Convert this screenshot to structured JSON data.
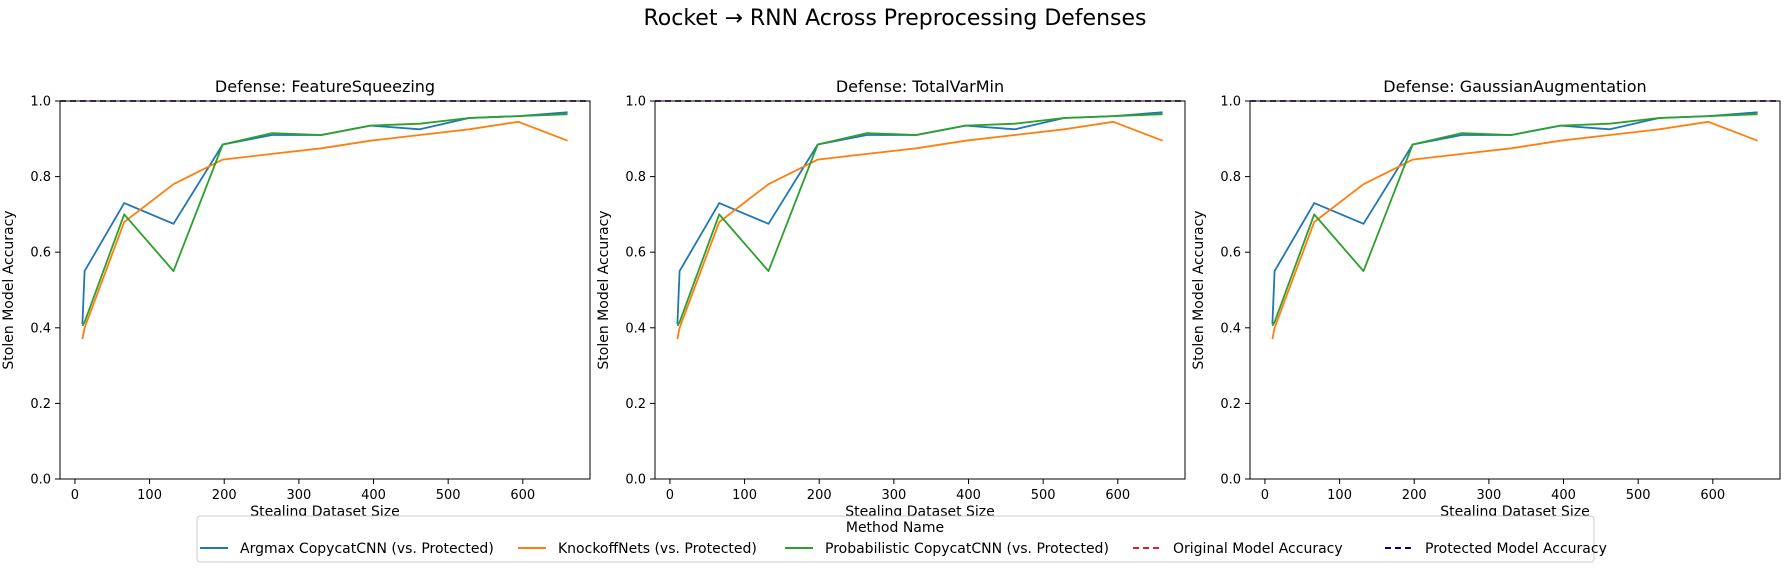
{
  "figure": {
    "title": "Rocket → RNN Across Preprocessing Defenses",
    "legend_title": "Method Name"
  },
  "colors": {
    "argmax": "#1f77b4",
    "knockoff": "#ff7f0e",
    "probabilistic": "#2ca02c",
    "original": "#d62728",
    "protected": "#00008b"
  },
  "chart_data": [
    {
      "type": "line",
      "title": "Defense: FeatureSqueezing",
      "xlabel": "Stealing Dataset Size",
      "ylabel": "Stolen Model Accuracy",
      "xlim": [
        -20,
        690
      ],
      "ylim": [
        0,
        1.0
      ],
      "xticks": [
        0,
        100,
        200,
        300,
        400,
        500,
        600
      ],
      "yticks": [
        0.0,
        0.2,
        0.4,
        0.6,
        0.8,
        1.0
      ],
      "legend_position": "lower-center",
      "series": [
        {
          "name": "Argmax CopycatCNN (vs. Protected)",
          "color": "argmax",
          "x": [
            10,
            13,
            66,
            132,
            198,
            264,
            330,
            396,
            462,
            528,
            594,
            660
          ],
          "y": [
            0.41,
            0.55,
            0.73,
            0.675,
            0.885,
            0.91,
            0.91,
            0.935,
            0.925,
            0.955,
            0.96,
            0.97
          ]
        },
        {
          "name": "KnockoffNets (vs. Protected)",
          "color": "knockoff",
          "x": [
            10,
            13,
            66,
            132,
            198,
            264,
            330,
            396,
            462,
            528,
            594,
            660
          ],
          "y": [
            0.37,
            0.4,
            0.68,
            0.78,
            0.845,
            0.86,
            0.875,
            0.895,
            0.91,
            0.925,
            0.945,
            0.895
          ]
        },
        {
          "name": "Probabilistic CopycatCNN (vs. Protected)",
          "color": "probabilistic",
          "x": [
            10,
            13,
            66,
            132,
            198,
            264,
            330,
            396,
            462,
            528,
            594,
            660
          ],
          "y": [
            0.405,
            0.415,
            0.7,
            0.55,
            0.885,
            0.915,
            0.91,
            0.935,
            0.94,
            0.955,
            0.96,
            0.965
          ]
        },
        {
          "name": "Original Model Accuracy",
          "color": "original",
          "dashed": true,
          "hline": 1.0
        },
        {
          "name": "Protected Model Accuracy",
          "color": "protected",
          "dashed": true,
          "hline": 1.0
        }
      ]
    },
    {
      "type": "line",
      "title": "Defense: TotalVarMin",
      "xlabel": "Stealing Dataset Size",
      "ylabel": "Stolen Model Accuracy",
      "xlim": [
        -20,
        690
      ],
      "ylim": [
        0,
        1.0
      ],
      "xticks": [
        0,
        100,
        200,
        300,
        400,
        500,
        600
      ],
      "yticks": [
        0.0,
        0.2,
        0.4,
        0.6,
        0.8,
        1.0
      ],
      "legend_position": "lower-center",
      "series": [
        {
          "name": "Argmax CopycatCNN (vs. Protected)",
          "color": "argmax",
          "x": [
            10,
            13,
            66,
            132,
            198,
            264,
            330,
            396,
            462,
            528,
            594,
            660
          ],
          "y": [
            0.41,
            0.55,
            0.73,
            0.675,
            0.885,
            0.91,
            0.91,
            0.935,
            0.925,
            0.955,
            0.96,
            0.97
          ]
        },
        {
          "name": "KnockoffNets (vs. Protected)",
          "color": "knockoff",
          "x": [
            10,
            13,
            66,
            132,
            198,
            264,
            330,
            396,
            462,
            528,
            594,
            660
          ],
          "y": [
            0.37,
            0.4,
            0.68,
            0.78,
            0.845,
            0.86,
            0.875,
            0.895,
            0.91,
            0.925,
            0.945,
            0.895
          ]
        },
        {
          "name": "Probabilistic CopycatCNN (vs. Protected)",
          "color": "probabilistic",
          "x": [
            10,
            13,
            66,
            132,
            198,
            264,
            330,
            396,
            462,
            528,
            594,
            660
          ],
          "y": [
            0.405,
            0.415,
            0.7,
            0.55,
            0.885,
            0.915,
            0.91,
            0.935,
            0.94,
            0.955,
            0.96,
            0.965
          ]
        },
        {
          "name": "Original Model Accuracy",
          "color": "original",
          "dashed": true,
          "hline": 1.0
        },
        {
          "name": "Protected Model Accuracy",
          "color": "protected",
          "dashed": true,
          "hline": 1.0
        }
      ]
    },
    {
      "type": "line",
      "title": "Defense: GaussianAugmentation",
      "xlabel": "Stealing Dataset Size",
      "ylabel": "Stolen Model Accuracy",
      "xlim": [
        -20,
        690
      ],
      "ylim": [
        0,
        1.0
      ],
      "xticks": [
        0,
        100,
        200,
        300,
        400,
        500,
        600
      ],
      "yticks": [
        0.0,
        0.2,
        0.4,
        0.6,
        0.8,
        1.0
      ],
      "legend_position": "lower-center",
      "series": [
        {
          "name": "Argmax CopycatCNN (vs. Protected)",
          "color": "argmax",
          "x": [
            10,
            13,
            66,
            132,
            198,
            264,
            330,
            396,
            462,
            528,
            594,
            660
          ],
          "y": [
            0.41,
            0.55,
            0.73,
            0.675,
            0.885,
            0.91,
            0.91,
            0.935,
            0.925,
            0.955,
            0.96,
            0.97
          ]
        },
        {
          "name": "KnockoffNets (vs. Protected)",
          "color": "knockoff",
          "x": [
            10,
            13,
            66,
            132,
            198,
            264,
            330,
            396,
            462,
            528,
            594,
            660
          ],
          "y": [
            0.37,
            0.4,
            0.68,
            0.78,
            0.845,
            0.86,
            0.875,
            0.895,
            0.91,
            0.925,
            0.945,
            0.895
          ]
        },
        {
          "name": "Probabilistic CopycatCNN (vs. Protected)",
          "color": "probabilistic",
          "x": [
            10,
            13,
            66,
            132,
            198,
            264,
            330,
            396,
            462,
            528,
            594,
            660
          ],
          "y": [
            0.405,
            0.415,
            0.7,
            0.55,
            0.885,
            0.915,
            0.91,
            0.935,
            0.94,
            0.955,
            0.96,
            0.965
          ]
        },
        {
          "name": "Original Model Accuracy",
          "color": "original",
          "dashed": true,
          "hline": 1.0
        },
        {
          "name": "Protected Model Accuracy",
          "color": "protected",
          "dashed": true,
          "hline": 1.0
        }
      ]
    }
  ],
  "legend": {
    "items": [
      {
        "label": "Argmax CopycatCNN (vs. Protected)",
        "color": "argmax",
        "dashed": false
      },
      {
        "label": "KnockoffNets (vs. Protected)",
        "color": "knockoff",
        "dashed": false
      },
      {
        "label": "Probabilistic CopycatCNN (vs. Protected)",
        "color": "probabilistic",
        "dashed": false
      },
      {
        "label": "Original Model Accuracy",
        "color": "original",
        "dashed": true
      },
      {
        "label": "Protected Model Accuracy",
        "color": "protected",
        "dashed": true
      }
    ]
  }
}
